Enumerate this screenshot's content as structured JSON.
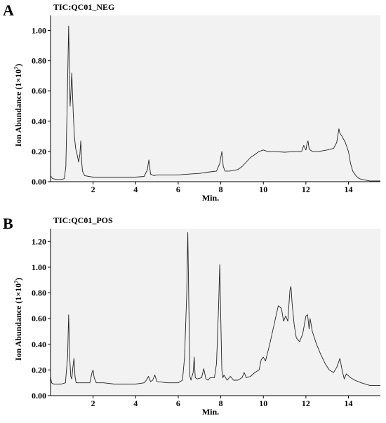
{
  "chart_data": [
    {
      "type": "line",
      "panel_label": "A",
      "title": "TIC:QC01_NEG",
      "xlabel": "Min.",
      "ylabel_main": "Ion Abundance (1×10",
      "ylabel_exp": "7",
      "ylabel_close": ")",
      "xlim": [
        0,
        15.5
      ],
      "ylim": [
        0,
        1.1
      ],
      "xticks": [
        2,
        4,
        6,
        8,
        10,
        12,
        14
      ],
      "yticks": [
        0.0,
        0.2,
        0.4,
        0.6,
        0.8,
        1.0
      ],
      "ytick_labels": [
        "0.00",
        "0.20",
        "0.40",
        "0.60",
        "0.80",
        "1.00"
      ],
      "grid": false,
      "series": [
        {
          "x": [
            0.0,
            0.1,
            0.3,
            0.5,
            0.65,
            0.72,
            0.78,
            0.82,
            0.85,
            0.88,
            0.92,
            0.96,
            1.0,
            1.03,
            1.07,
            1.12,
            1.18,
            1.25,
            1.32,
            1.38,
            1.42,
            1.46,
            1.5,
            1.6,
            1.8,
            2.0,
            2.2,
            2.5,
            3.0,
            3.5,
            4.0,
            4.4,
            4.55,
            4.62,
            4.7,
            4.85,
            5.0,
            5.5,
            6.0,
            6.5,
            7.0,
            7.5,
            7.8,
            7.95,
            8.05,
            8.12,
            8.2,
            8.4,
            8.8,
            9.0,
            9.2,
            9.4,
            9.6,
            9.8,
            10.0,
            10.2,
            10.5,
            11.0,
            11.5,
            11.8,
            11.9,
            12.0,
            12.05,
            12.1,
            12.15,
            12.2,
            12.3,
            12.6,
            13.0,
            13.3,
            13.45,
            13.55,
            13.6,
            13.7,
            13.85,
            14.0,
            14.1,
            14.2,
            14.35,
            14.5,
            14.8,
            15.0,
            15.5
          ],
          "y": [
            0.04,
            0.02,
            0.015,
            0.015,
            0.02,
            0.1,
            0.5,
            0.8,
            1.03,
            0.8,
            0.5,
            0.6,
            0.72,
            0.6,
            0.45,
            0.3,
            0.22,
            0.18,
            0.13,
            0.18,
            0.27,
            0.14,
            0.07,
            0.04,
            0.035,
            0.03,
            0.03,
            0.03,
            0.03,
            0.03,
            0.03,
            0.035,
            0.08,
            0.145,
            0.05,
            0.04,
            0.045,
            0.045,
            0.045,
            0.05,
            0.055,
            0.065,
            0.07,
            0.12,
            0.2,
            0.1,
            0.07,
            0.07,
            0.08,
            0.1,
            0.13,
            0.16,
            0.18,
            0.2,
            0.21,
            0.2,
            0.2,
            0.195,
            0.2,
            0.2,
            0.24,
            0.21,
            0.25,
            0.27,
            0.22,
            0.21,
            0.2,
            0.2,
            0.21,
            0.22,
            0.26,
            0.35,
            0.32,
            0.3,
            0.26,
            0.2,
            0.12,
            0.07,
            0.04,
            0.02,
            0.01,
            0.005,
            0.005
          ]
        }
      ]
    },
    {
      "type": "line",
      "panel_label": "B",
      "title": "TIC:QC01_POS",
      "xlabel": "Min.",
      "ylabel_main": "Ion Abundance (1×10",
      "ylabel_exp": "7",
      "ylabel_close": ")",
      "xlim": [
        0,
        15.5
      ],
      "ylim": [
        0,
        1.3
      ],
      "xticks": [
        2,
        4,
        6,
        8,
        10,
        12,
        14
      ],
      "yticks": [
        0.0,
        0.2,
        0.4,
        0.6,
        0.8,
        1.0,
        1.2
      ],
      "ytick_labels": [
        "0.00",
        "0.20",
        "0.40",
        "0.60",
        "0.80",
        "1.00",
        "1.20"
      ],
      "grid": false,
      "series": [
        {
          "x": [
            0.0,
            0.05,
            0.15,
            0.5,
            0.7,
            0.8,
            0.85,
            0.9,
            0.95,
            1.0,
            1.05,
            1.1,
            1.15,
            1.2,
            1.5,
            1.85,
            1.95,
            2.0,
            2.05,
            2.15,
            2.5,
            3.0,
            4.0,
            4.4,
            4.5,
            4.6,
            4.7,
            4.8,
            4.9,
            5.0,
            5.5,
            6.0,
            6.2,
            6.3,
            6.4,
            6.45,
            6.5,
            6.55,
            6.6,
            6.7,
            6.75,
            6.8,
            6.9,
            7.1,
            7.2,
            7.3,
            7.4,
            7.5,
            7.7,
            7.8,
            7.9,
            7.95,
            8.0,
            8.05,
            8.1,
            8.15,
            8.3,
            8.45,
            8.6,
            8.8,
            9.0,
            9.1,
            9.2,
            9.4,
            9.6,
            9.8,
            9.9,
            10.0,
            10.1,
            10.3,
            10.5,
            10.7,
            10.85,
            10.95,
            11.05,
            11.15,
            11.25,
            11.3,
            11.35,
            11.45,
            11.55,
            11.7,
            11.85,
            12.0,
            12.08,
            12.15,
            12.2,
            12.3,
            12.5,
            12.7,
            12.9,
            13.1,
            13.3,
            13.45,
            13.6,
            13.7,
            13.8,
            13.9,
            14.1,
            14.3,
            14.6,
            15.0,
            15.5
          ],
          "y": [
            0.15,
            0.1,
            0.09,
            0.09,
            0.1,
            0.3,
            0.63,
            0.3,
            0.15,
            0.13,
            0.22,
            0.29,
            0.15,
            0.1,
            0.1,
            0.1,
            0.18,
            0.2,
            0.14,
            0.1,
            0.1,
            0.09,
            0.09,
            0.1,
            0.12,
            0.15,
            0.11,
            0.12,
            0.16,
            0.11,
            0.1,
            0.1,
            0.12,
            0.3,
            0.8,
            1.27,
            0.7,
            0.15,
            0.12,
            0.18,
            0.3,
            0.14,
            0.13,
            0.14,
            0.21,
            0.13,
            0.12,
            0.14,
            0.14,
            0.25,
            0.7,
            1.02,
            0.6,
            0.2,
            0.14,
            0.16,
            0.12,
            0.15,
            0.12,
            0.12,
            0.14,
            0.18,
            0.14,
            0.15,
            0.18,
            0.2,
            0.28,
            0.3,
            0.27,
            0.4,
            0.55,
            0.7,
            0.68,
            0.58,
            0.62,
            0.58,
            0.82,
            0.85,
            0.72,
            0.55,
            0.45,
            0.42,
            0.48,
            0.62,
            0.63,
            0.52,
            0.6,
            0.5,
            0.4,
            0.32,
            0.25,
            0.2,
            0.18,
            0.22,
            0.29,
            0.2,
            0.13,
            0.17,
            0.14,
            0.12,
            0.1,
            0.08,
            0.08
          ]
        }
      ]
    }
  ]
}
